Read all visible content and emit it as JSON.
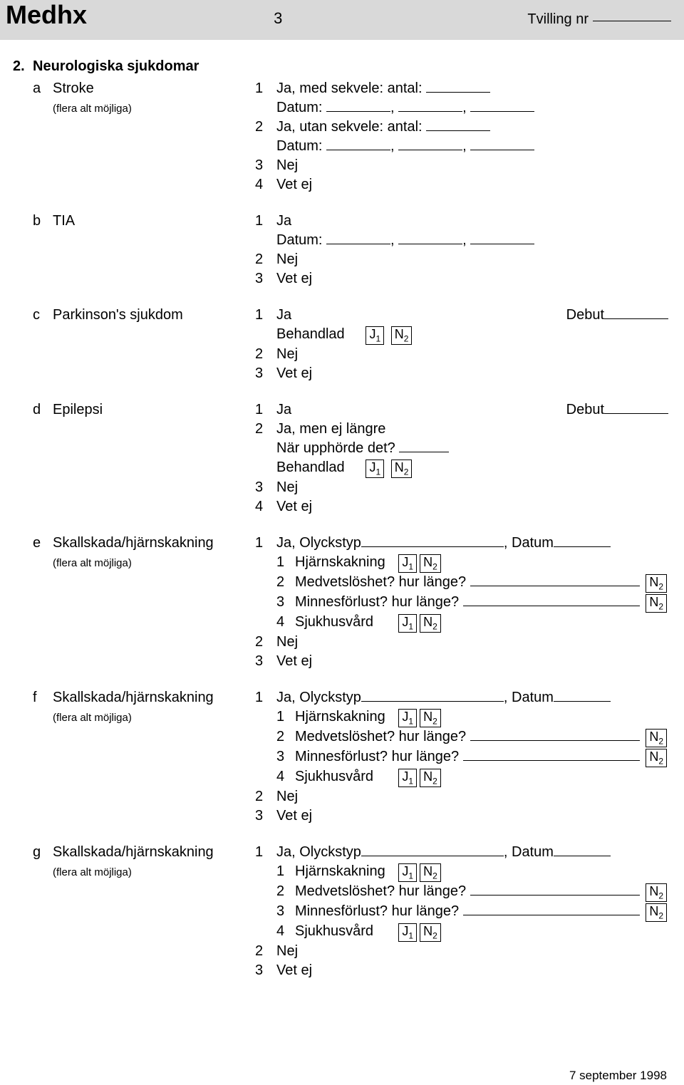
{
  "header": {
    "title": "Medhx",
    "page_number": "3",
    "twin_label": "Tvilling nr"
  },
  "section": {
    "number": "2.",
    "title": "Neurologiska sjukdomar"
  },
  "common": {
    "ja": "Ja",
    "nej": "Nej",
    "vet_ej": "Vet ej",
    "datum_colon": "Datum:",
    "flera_alt": "(flera alt möjliga)",
    "behandlad": "Behandlad",
    "debut": "Debut",
    "ja_med_sekvele": "Ja, med sekvele: antal:",
    "ja_utan_sekvele": "Ja, utan sekvele: antal:",
    "ja_men_ej": "Ja, men ej längre",
    "nar_upphorde": "När upphörde det?",
    "ja_olyckstyp": "Ja, Olyckstyp",
    "hjarnskakning": "Hjärnskakning",
    "medvetsloshet": "Medvetslöshet? hur länge?",
    "minnesforlust": "Minnesförlust? hur länge?",
    "sjukhusvard": "Sjukhusvård",
    "datum_comma": ", Datum",
    "j1": "J",
    "n2": "N"
  },
  "items": {
    "a": {
      "letter": "a",
      "label": "Stroke"
    },
    "b": {
      "letter": "b",
      "label": "TIA"
    },
    "c": {
      "letter": "c",
      "label": "Parkinson's sjukdom"
    },
    "d": {
      "letter": "d",
      "label": "Epilepsi"
    },
    "e": {
      "letter": "e",
      "label": "Skallskada/hjärnskakning"
    },
    "f": {
      "letter": "f",
      "label": "Skallskada/hjärnskakning"
    },
    "g": {
      "letter": "g",
      "label": "Skallskada/hjärnskakning"
    }
  },
  "footer": {
    "date": "7 september 1998"
  }
}
